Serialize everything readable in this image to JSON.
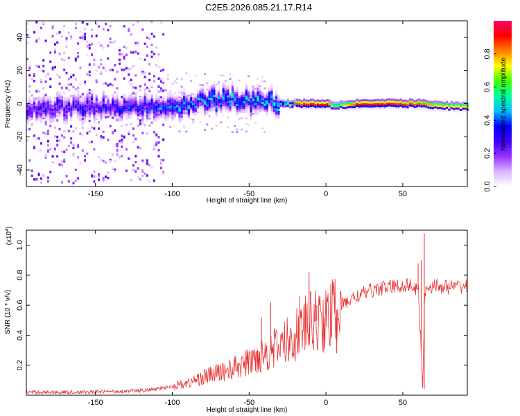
{
  "chart_data": [
    {
      "type": "heatmap",
      "title": "C2E5.2026.085.21.17.R14",
      "xlabel": "Height of straight line (km)",
      "ylabel": "Frequency (Hz)",
      "xlim": [
        -195,
        92
      ],
      "ylim": [
        -50,
        50
      ],
      "x_ticks": [
        -150,
        -100,
        -50,
        0,
        50
      ],
      "x_tick_labels": [
        "-150",
        "-100",
        "-50",
        "0",
        "50"
      ],
      "y_ticks": [
        -40,
        -20,
        0,
        20,
        40
      ],
      "y_tick_labels": [
        "-40",
        "-20",
        "0",
        "20",
        "40"
      ],
      "colorbar": {
        "label": "Normalized spectral amplitude",
        "range": [
          0,
          1
        ],
        "ticks": [
          0.0,
          0.2,
          0.4,
          0.6,
          0.8
        ],
        "tick_labels": [
          "0.0",
          "0.2",
          "0.4",
          "0.6",
          "0.8"
        ],
        "colors": [
          "#ffffff",
          "#d9b3ff",
          "#9b30ff",
          "#3c00ff",
          "#0000ff",
          "#00bfff",
          "#00ffa0",
          "#40ff00",
          "#ffff00",
          "#ff8000",
          "#ff0000",
          "#ff0066"
        ]
      },
      "ridge": {
        "description_points_x": [
          -195,
          -150,
          -120,
          -100,
          -80,
          -60,
          -50,
          -40,
          -30,
          -20,
          -10,
          0,
          5,
          20,
          40,
          60,
          70,
          92
        ],
        "center_freq": [
          -3,
          -2,
          -2,
          -2,
          1,
          3,
          1,
          2,
          0,
          0,
          0,
          0,
          -1,
          0,
          0,
          0,
          -1,
          -2
        ],
        "peak_amplitude": [
          0.35,
          0.35,
          0.4,
          0.45,
          0.5,
          0.5,
          0.5,
          0.55,
          0.6,
          0.9,
          0.95,
          0.95,
          0.6,
          0.95,
          0.95,
          0.9,
          0.8,
          0.75
        ]
      }
    },
    {
      "type": "line",
      "xlabel": "Height of straight line (km)",
      "ylabel": "SNR (10 * v/v)",
      "y_scale_label": "(x10",
      "y_scale_exp": "4",
      "y_scale_suffix": ")",
      "xlim": [
        -195,
        92
      ],
      "ylim": [
        0,
        1.1
      ],
      "x_ticks": [
        -150,
        -100,
        -50,
        0,
        50
      ],
      "x_tick_labels": [
        "-150",
        "-100",
        "-50",
        "0",
        "50"
      ],
      "y_ticks": [
        0.2,
        0.4,
        0.6,
        0.8,
        1.0
      ],
      "y_tick_labels": [
        "0.2",
        "0.4",
        "0.6",
        "0.8",
        "1.0"
      ],
      "color": "#e83030",
      "series": [
        {
          "name": "SNR",
          "x": [
            -195,
            -180,
            -160,
            -140,
            -120,
            -110,
            -100,
            -90,
            -80,
            -70,
            -60,
            -50,
            -40,
            -30,
            -20,
            -15,
            -10,
            -5,
            0,
            5,
            10,
            20,
            30,
            40,
            50,
            55,
            58,
            60,
            62,
            63,
            64,
            65,
            70,
            80,
            92
          ],
          "y": [
            0.02,
            0.02,
            0.02,
            0.025,
            0.03,
            0.04,
            0.06,
            0.08,
            0.12,
            0.15,
            0.18,
            0.22,
            0.28,
            0.33,
            0.4,
            0.45,
            0.48,
            0.5,
            0.5,
            0.55,
            0.6,
            0.66,
            0.7,
            0.72,
            0.73,
            0.74,
            0.7,
            0.72,
            0.3,
            0.05,
            0.6,
            0.72,
            0.73,
            0.72,
            0.73
          ]
        }
      ],
      "spikes": [
        {
          "x": -42,
          "y": 0.52
        },
        {
          "x": -36,
          "y": 0.62
        },
        {
          "x": -23,
          "y": 0.45
        },
        {
          "x": -17,
          "y": 0.66
        },
        {
          "x": -11,
          "y": 0.82
        },
        {
          "x": -6,
          "y": 0.6
        },
        {
          "x": 7,
          "y": 0.28
        },
        {
          "x": 60,
          "y": 0.88
        },
        {
          "x": 62,
          "y": 0.9
        },
        {
          "x": 64,
          "y": 1.08
        },
        {
          "x": 64,
          "y": 0.04
        }
      ]
    }
  ]
}
